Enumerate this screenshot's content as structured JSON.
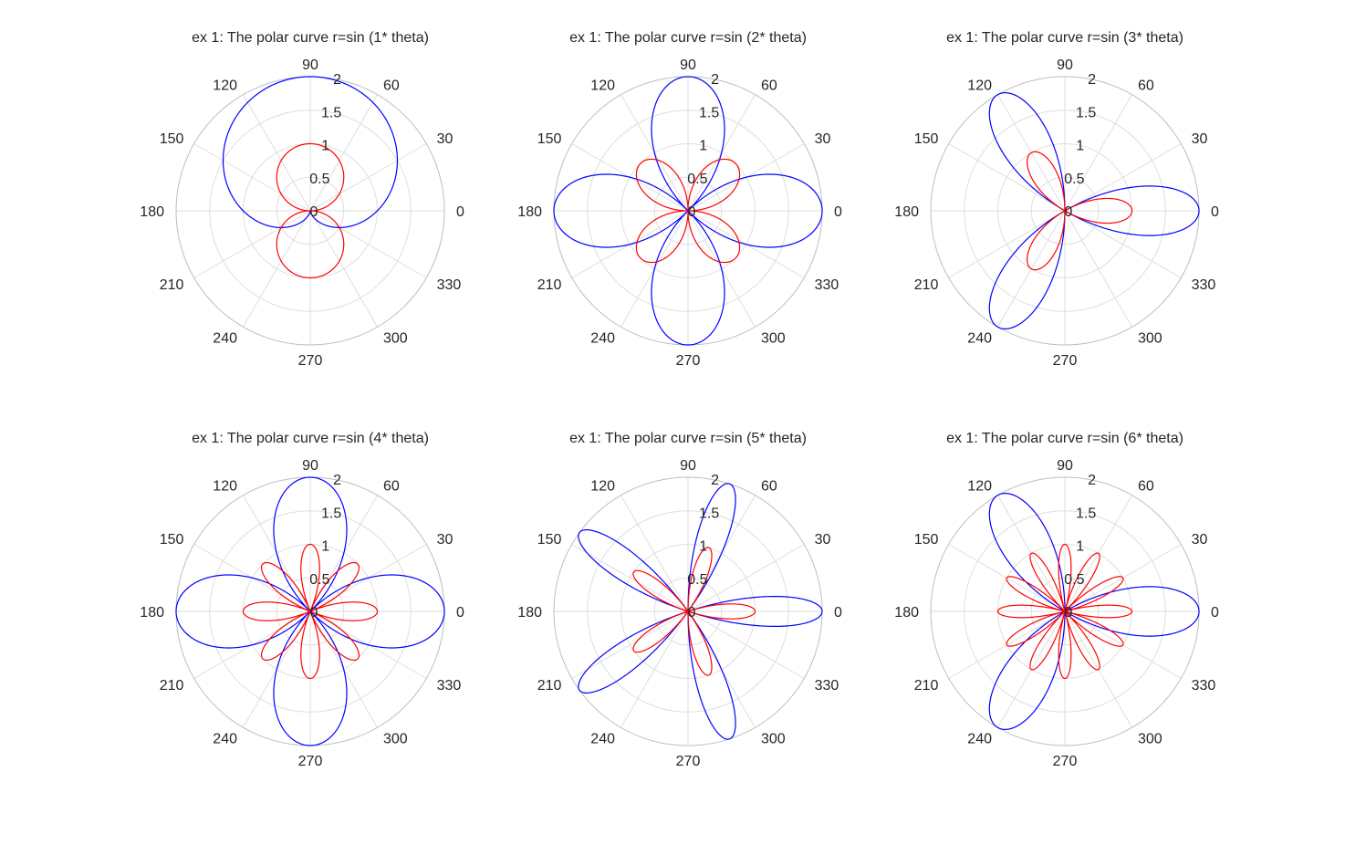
{
  "chart_data": [
    {
      "type": "polar",
      "title": "ex 1: The polar curve r=sin (1* theta)",
      "r_ticks": [
        "0",
        "0.5",
        "1",
        "1.5",
        "2"
      ],
      "r_lim": [
        0,
        2
      ],
      "theta_ticks": [
        "0",
        "30",
        "60",
        "90",
        "120",
        "150",
        "180",
        "210",
        "240",
        "270",
        "300",
        "330"
      ],
      "grid": true,
      "series": [
        {
          "equation": "r = 1 + sin(1*theta)",
          "k": 1,
          "amplitude": 1,
          "offset": 1,
          "color": "#0000ff"
        },
        {
          "equation": "r = |sin(1*theta)|",
          "k": 1,
          "amplitude": 1,
          "offset": 0,
          "color": "#ff0000"
        }
      ]
    },
    {
      "type": "polar",
      "title": "ex 1: The polar curve r=sin (2* theta)",
      "r_ticks": [
        "0",
        "0.5",
        "1",
        "1.5",
        "2"
      ],
      "r_lim": [
        0,
        2
      ],
      "theta_ticks": [
        "0",
        "30",
        "60",
        "90",
        "120",
        "150",
        "180",
        "210",
        "240",
        "270",
        "300",
        "330"
      ],
      "grid": true,
      "series": [
        {
          "equation": "r = 2*cos(2*theta)",
          "k": 2,
          "amplitude": 2,
          "offset": 0,
          "color": "#0000ff"
        },
        {
          "equation": "r = sin(2*theta)",
          "k": 2,
          "amplitude": 1,
          "offset": 0,
          "color": "#ff0000"
        }
      ]
    },
    {
      "type": "polar",
      "title": "ex 1: The polar curve r=sin (3* theta)",
      "r_ticks": [
        "0",
        "0.5",
        "1",
        "1.5",
        "2"
      ],
      "r_lim": [
        0,
        2
      ],
      "theta_ticks": [
        "0",
        "30",
        "60",
        "90",
        "120",
        "150",
        "180",
        "210",
        "240",
        "270",
        "300",
        "330"
      ],
      "grid": true,
      "series": [
        {
          "equation": "r = 2*cos(3*theta)",
          "k": 3,
          "amplitude": 2,
          "offset": 0,
          "color": "#0000ff"
        },
        {
          "equation": "r = cos(3*theta)",
          "k": 3,
          "amplitude": 1,
          "offset": 0,
          "color": "#ff0000"
        }
      ]
    },
    {
      "type": "polar",
      "title": "ex 1: The polar curve r=sin (4* theta)",
      "r_ticks": [
        "0",
        "0.5",
        "1",
        "1.5",
        "2"
      ],
      "r_lim": [
        0,
        2
      ],
      "theta_ticks": [
        "0",
        "30",
        "60",
        "90",
        "120",
        "150",
        "180",
        "210",
        "240",
        "270",
        "300",
        "330"
      ],
      "grid": true,
      "series": [
        {
          "equation": "r = 2*cos(2*theta)",
          "k": 2,
          "amplitude": 2,
          "offset": 0,
          "color": "#0000ff"
        },
        {
          "equation": "r = cos(4*theta)",
          "k": 4,
          "amplitude": 1,
          "offset": 0,
          "color": "#ff0000"
        }
      ]
    },
    {
      "type": "polar",
      "title": "ex 1: The polar curve r=sin (5* theta)",
      "r_ticks": [
        "0",
        "0.5",
        "1",
        "1.5",
        "2"
      ],
      "r_lim": [
        0,
        2
      ],
      "theta_ticks": [
        "0",
        "30",
        "60",
        "90",
        "120",
        "150",
        "180",
        "210",
        "240",
        "270",
        "300",
        "330"
      ],
      "grid": true,
      "series": [
        {
          "equation": "r = 2*cos(5*theta)",
          "k": 5,
          "amplitude": 2,
          "offset": 0,
          "color": "#0000ff"
        },
        {
          "equation": "r = cos(5*theta)",
          "k": 5,
          "amplitude": 1,
          "offset": 0,
          "color": "#ff0000"
        }
      ]
    },
    {
      "type": "polar",
      "title": "ex 1: The polar curve r=sin (6* theta)",
      "r_ticks": [
        "0",
        "0.5",
        "1",
        "1.5",
        "2"
      ],
      "r_lim": [
        0,
        2
      ],
      "theta_ticks": [
        "0",
        "30",
        "60",
        "90",
        "120",
        "150",
        "180",
        "210",
        "240",
        "270",
        "300",
        "330"
      ],
      "grid": true,
      "series": [
        {
          "equation": "r = 2*cos(3*theta)",
          "k": 3,
          "amplitude": 2,
          "offset": 0,
          "color": "#0000ff"
        },
        {
          "equation": "r = cos(6*theta)",
          "k": 6,
          "amplitude": 1,
          "offset": 0,
          "color": "#ff0000"
        }
      ]
    }
  ]
}
